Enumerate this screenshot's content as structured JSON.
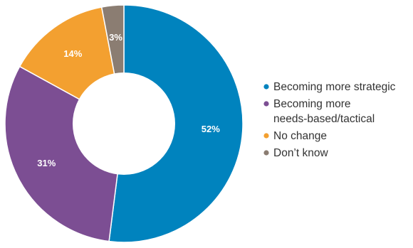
{
  "chart_data": {
    "type": "pie",
    "donut": true,
    "title": "",
    "start_angle_deg": 0,
    "direction": "clockwise",
    "slices": [
      {
        "label": "Becoming more strategic",
        "label_lines": [
          "Becoming more strategic"
        ],
        "value": 52,
        "display": "52%",
        "color": "#0083BE"
      },
      {
        "label": "Becoming more needs-based/tactical",
        "label_lines": [
          "Becoming more",
          "needs-based/tactical"
        ],
        "value": 31,
        "display": "31%",
        "color": "#7C4E93"
      },
      {
        "label": "No change",
        "label_lines": [
          "No change"
        ],
        "value": 14,
        "display": "14%",
        "color": "#F3A030"
      },
      {
        "label": "Don’t know",
        "label_lines": [
          "Don’t know"
        ],
        "value": 3,
        "display": "3%",
        "color": "#8B7D72"
      }
    ],
    "legend": {
      "position": "right"
    }
  }
}
